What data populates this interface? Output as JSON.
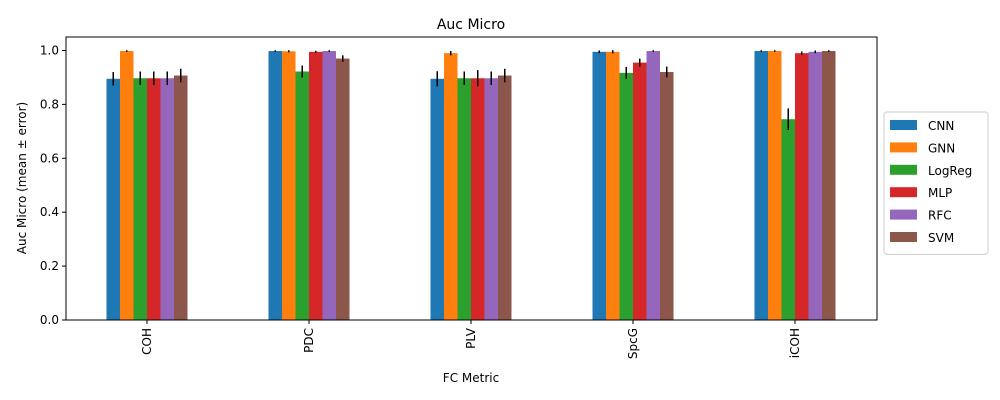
{
  "chart_data": {
    "type": "bar",
    "title": "Auc Micro",
    "xlabel": "FC Metric",
    "ylabel": "Auc Micro (mean ± error)",
    "ylim": [
      0,
      1.05
    ],
    "yticks": [
      "0.0",
      "0.2",
      "0.4",
      "0.6",
      "0.8",
      "1.0"
    ],
    "categories": [
      "COH",
      "PDC",
      "PLV",
      "SpcG",
      "iCOH"
    ],
    "legend_position": "right",
    "grid": false,
    "series": [
      {
        "name": "CNN",
        "color": "#1f77b4",
        "values": [
          0.895,
          0.998,
          0.895,
          0.995,
          0.998
        ],
        "errors": [
          0.025,
          0.003,
          0.028,
          0.005,
          0.003
        ]
      },
      {
        "name": "GNN",
        "color": "#ff7f0e",
        "values": [
          0.998,
          0.997,
          0.99,
          0.995,
          0.998
        ],
        "errors": [
          0.003,
          0.004,
          0.008,
          0.006,
          0.003
        ]
      },
      {
        "name": "LogReg",
        "color": "#2ca02c",
        "values": [
          0.897,
          0.922,
          0.897,
          0.917,
          0.745
        ],
        "errors": [
          0.025,
          0.022,
          0.025,
          0.022,
          0.04
        ]
      },
      {
        "name": "MLP",
        "color": "#d62728",
        "values": [
          0.897,
          0.995,
          0.897,
          0.955,
          0.99
        ],
        "errors": [
          0.025,
          0.004,
          0.03,
          0.015,
          0.006
        ]
      },
      {
        "name": "RFC",
        "color": "#9467bd",
        "values": [
          0.897,
          0.998,
          0.897,
          0.998,
          0.995
        ],
        "errors": [
          0.025,
          0.003,
          0.025,
          0.003,
          0.005
        ]
      },
      {
        "name": "SVM",
        "color": "#8c564b",
        "values": [
          0.907,
          0.97,
          0.907,
          0.92,
          0.998
        ],
        "errors": [
          0.025,
          0.012,
          0.025,
          0.02,
          0.003
        ]
      }
    ]
  }
}
